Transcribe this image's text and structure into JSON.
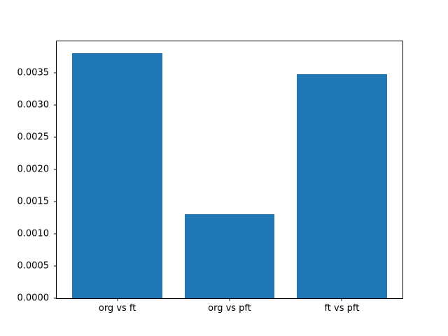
{
  "chart_data": {
    "type": "bar",
    "title": "",
    "xlabel": "",
    "ylabel": "",
    "categories": [
      "org vs ft",
      "org vs pft",
      "ft vs pft"
    ],
    "values": [
      0.0038,
      0.0013,
      0.00348
    ],
    "bar_color": "#1f77b4",
    "bar_width": 0.8,
    "xlim": [
      -0.54,
      2.54
    ],
    "ylim": [
      0,
      0.00399
    ],
    "yticks": [
      0.0,
      0.0005,
      0.001,
      0.0015,
      0.002,
      0.0025,
      0.003,
      0.0035
    ],
    "ytick_labels": [
      "0.0000",
      "0.0005",
      "0.0010",
      "0.0015",
      "0.0020",
      "0.0025",
      "0.0030",
      "0.0035"
    ],
    "grid": false,
    "legend": null,
    "frame_color": "#000000",
    "background_color": "#ffffff"
  }
}
